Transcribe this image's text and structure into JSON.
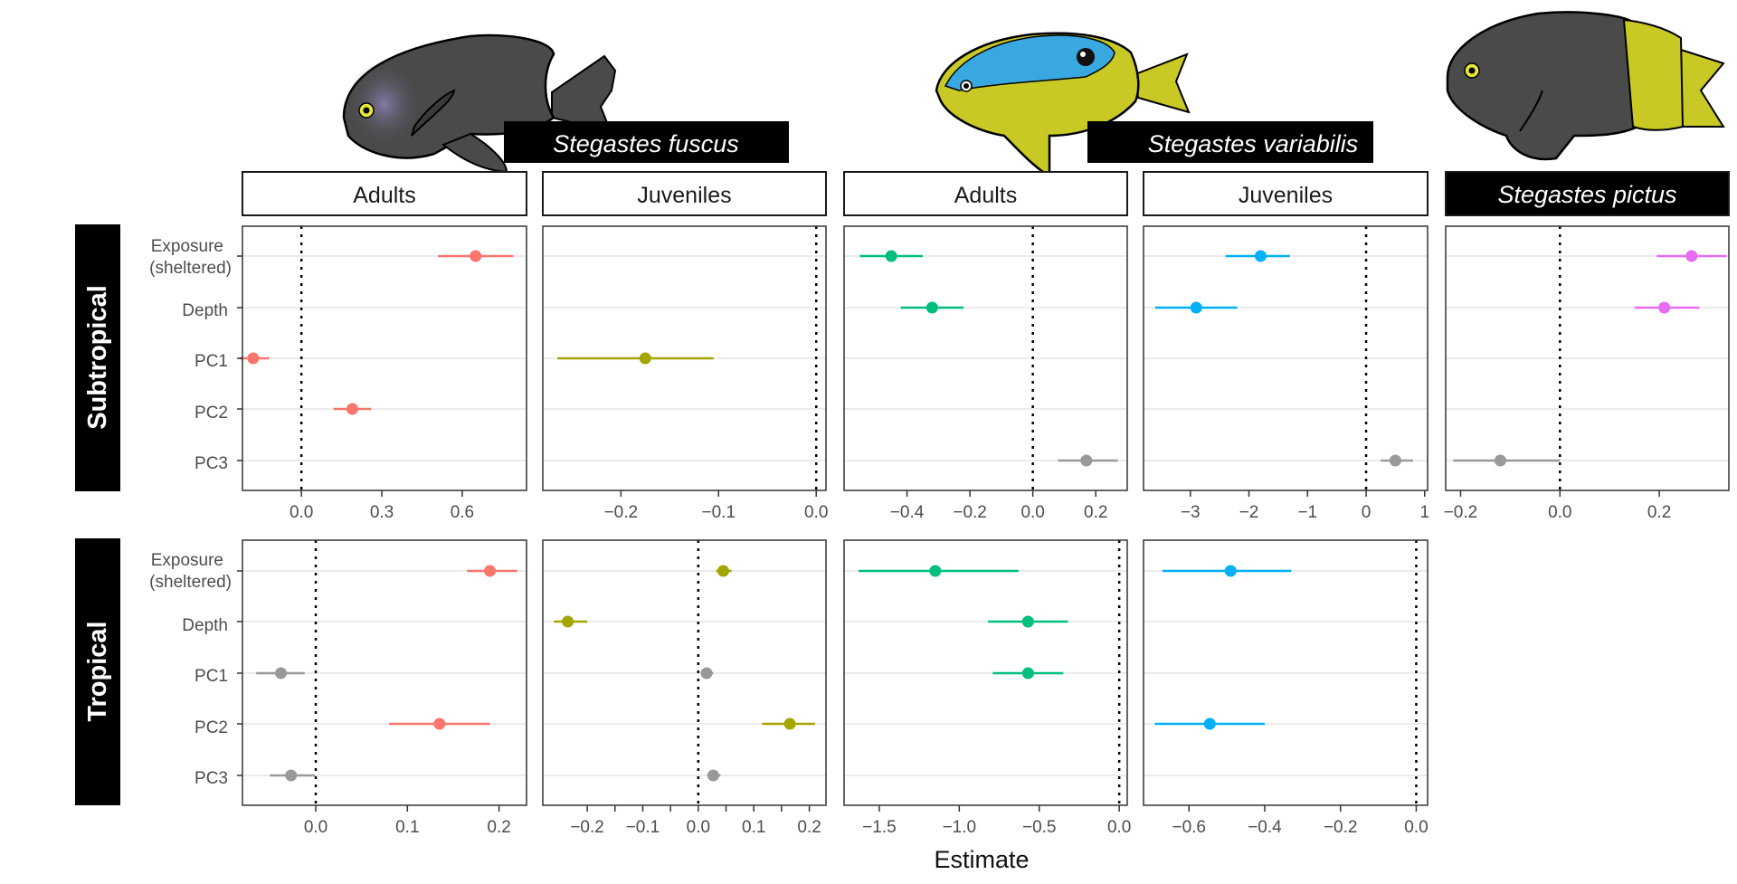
{
  "chart_data": {
    "type": "forest",
    "xlabel": "Estimate",
    "row_labels": [
      "Subtropical",
      "Tropical"
    ],
    "species": [
      "Stegastes fuscus",
      "Stegastes variabilis",
      "Stegastes pictus"
    ],
    "predictors": [
      "Exposure\n(sheltered)",
      "Depth",
      "PC1",
      "PC2",
      "PC3"
    ],
    "colors": {
      "fuscus": "#F8766D",
      "fuscus_juv": "#A3A500",
      "variabilis_adult": "#00BF7D",
      "variabilis_juv": "#00B0F6",
      "pictus": "#E76BF3",
      "nonsig": "#999999",
      "grid": "#EBEBEB",
      "species_bg": "#000000"
    },
    "panels": [
      {
        "id": "sub-fuscus-adults",
        "row": 0,
        "col": 0,
        "strip": "Adults",
        "xlim": [
          -0.22,
          0.84
        ],
        "ticks": [
          0.0,
          0.3,
          0.6
        ],
        "tick_labels": [
          "0.0",
          "0.3",
          "0.6"
        ],
        "points": [
          {
            "predictor": 0,
            "est": 0.65,
            "lo": 0.51,
            "hi": 0.79,
            "color": "fuscus"
          },
          {
            "predictor": 2,
            "est": -0.18,
            "lo": -0.23,
            "hi": -0.12,
            "color": "fuscus"
          },
          {
            "predictor": 3,
            "est": 0.19,
            "lo": 0.12,
            "hi": 0.26,
            "color": "fuscus"
          }
        ]
      },
      {
        "id": "sub-fuscus-juveniles",
        "row": 0,
        "col": 1,
        "strip": "Juveniles",
        "xlim": [
          -0.28,
          0.01
        ],
        "ticks": [
          -0.2,
          -0.1,
          0.0
        ],
        "tick_labels": [
          "−0.2",
          "−0.1",
          "0.0"
        ],
        "points": [
          {
            "predictor": 2,
            "est": -0.175,
            "lo": -0.265,
            "hi": -0.105,
            "color": "fuscus_juv"
          }
        ]
      },
      {
        "id": "sub-variabilis-adults",
        "row": 0,
        "col": 2,
        "strip": "Adults",
        "xlim": [
          -0.6,
          0.3
        ],
        "ticks": [
          -0.4,
          -0.2,
          0.0,
          0.2
        ],
        "tick_labels": [
          "−0.4",
          "−0.2",
          "0.0",
          "0.2"
        ],
        "points": [
          {
            "predictor": 0,
            "est": -0.45,
            "lo": -0.55,
            "hi": -0.35,
            "color": "variabilis_adult"
          },
          {
            "predictor": 1,
            "est": -0.32,
            "lo": -0.42,
            "hi": -0.22,
            "color": "variabilis_adult"
          },
          {
            "predictor": 4,
            "est": 0.17,
            "lo": 0.08,
            "hi": 0.27,
            "color": "nonsig"
          }
        ]
      },
      {
        "id": "sub-variabilis-juveniles",
        "row": 0,
        "col": 3,
        "strip": "Juveniles",
        "xlim": [
          -3.8,
          1.05
        ],
        "ticks": [
          -3,
          -2,
          -1,
          0,
          1
        ],
        "tick_labels": [
          "−3",
          "−2",
          "−1",
          "0",
          "1"
        ],
        "points": [
          {
            "predictor": 0,
            "est": -1.8,
            "lo": -2.4,
            "hi": -1.3,
            "color": "variabilis_juv"
          },
          {
            "predictor": 1,
            "est": -2.9,
            "lo": -3.6,
            "hi": -2.2,
            "color": "variabilis_juv"
          },
          {
            "predictor": 4,
            "est": 0.5,
            "lo": 0.25,
            "hi": 0.8,
            "color": "nonsig"
          }
        ]
      },
      {
        "id": "sub-pictus",
        "row": 0,
        "col": 4,
        "strip": "Stegastes pictus",
        "strip_style": "species",
        "xlim": [
          -0.23,
          0.34
        ],
        "ticks": [
          -0.2,
          0.0,
          0.2
        ],
        "tick_labels": [
          "−0.2",
          "0.0",
          "0.2"
        ],
        "points": [
          {
            "predictor": 0,
            "est": 0.265,
            "lo": 0.195,
            "hi": 0.335,
            "color": "pictus"
          },
          {
            "predictor": 1,
            "est": 0.21,
            "lo": 0.15,
            "hi": 0.28,
            "color": "pictus"
          },
          {
            "predictor": 4,
            "est": -0.12,
            "lo": -0.215,
            "hi": 0.0,
            "color": "nonsig"
          }
        ]
      },
      {
        "id": "tro-fuscus-adults",
        "row": 1,
        "col": 0,
        "xlim": [
          -0.08,
          0.23
        ],
        "ticks": [
          0.0,
          0.1,
          0.2
        ],
        "tick_labels": [
          "0.0",
          "0.1",
          "0.2"
        ],
        "points": [
          {
            "predictor": 0,
            "est": 0.19,
            "lo": 0.165,
            "hi": 0.22,
            "color": "fuscus"
          },
          {
            "predictor": 2,
            "est": -0.038,
            "lo": -0.065,
            "hi": -0.012,
            "color": "nonsig"
          },
          {
            "predictor": 3,
            "est": 0.135,
            "lo": 0.08,
            "hi": 0.19,
            "color": "fuscus"
          },
          {
            "predictor": 4,
            "est": -0.027,
            "lo": -0.05,
            "hi": -0.001,
            "color": "nonsig"
          }
        ]
      },
      {
        "id": "tro-fuscus-juveniles",
        "row": 1,
        "col": 1,
        "xlim": [
          -0.28,
          0.23
        ],
        "ticks": [
          -0.2,
          -0.1,
          0.0,
          0.1,
          0.2
        ],
        "tick_labels": [
          "−0.2",
          "−0.1",
          "0.0",
          "0.1",
          "0.2"
        ],
        "extra_ticks": [
          -0.15,
          -0.05,
          0.05,
          0.15
        ],
        "points": [
          {
            "predictor": 0,
            "est": 0.045,
            "lo": 0.032,
            "hi": 0.06,
            "color": "fuscus_juv"
          },
          {
            "predictor": 1,
            "est": -0.235,
            "lo": -0.26,
            "hi": -0.2,
            "color": "fuscus_juv"
          },
          {
            "predictor": 2,
            "est": 0.015,
            "lo": 0.005,
            "hi": 0.027,
            "color": "nonsig"
          },
          {
            "predictor": 3,
            "est": 0.165,
            "lo": 0.115,
            "hi": 0.21,
            "color": "fuscus_juv"
          },
          {
            "predictor": 4,
            "est": 0.027,
            "lo": 0.016,
            "hi": 0.04,
            "color": "nonsig"
          }
        ]
      },
      {
        "id": "tro-variabilis-adults",
        "row": 1,
        "col": 2,
        "xlim": [
          -1.72,
          0.05
        ],
        "ticks": [
          -1.5,
          -1.0,
          -0.5,
          0.0
        ],
        "tick_labels": [
          "−1.5",
          "−1.0",
          "−0.5",
          "0.0"
        ],
        "points": [
          {
            "predictor": 0,
            "est": -1.15,
            "lo": -1.63,
            "hi": -0.63,
            "color": "variabilis_adult"
          },
          {
            "predictor": 1,
            "est": -0.57,
            "lo": -0.82,
            "hi": -0.32,
            "color": "variabilis_adult"
          },
          {
            "predictor": 2,
            "est": -0.57,
            "lo": -0.79,
            "hi": -0.35,
            "color": "variabilis_adult"
          }
        ]
      },
      {
        "id": "tro-variabilis-juveniles",
        "row": 1,
        "col": 3,
        "xlim": [
          -0.72,
          0.03
        ],
        "ticks": [
          -0.6,
          -0.4,
          -0.2,
          0.0
        ],
        "tick_labels": [
          "−0.6",
          "−0.4",
          "−0.2",
          "0.0"
        ],
        "points": [
          {
            "predictor": 0,
            "est": -0.49,
            "lo": -0.67,
            "hi": -0.33,
            "color": "variabilis_juv"
          },
          {
            "predictor": 3,
            "est": -0.545,
            "lo": -0.69,
            "hi": -0.4,
            "color": "variabilis_juv"
          }
        ]
      }
    ]
  }
}
